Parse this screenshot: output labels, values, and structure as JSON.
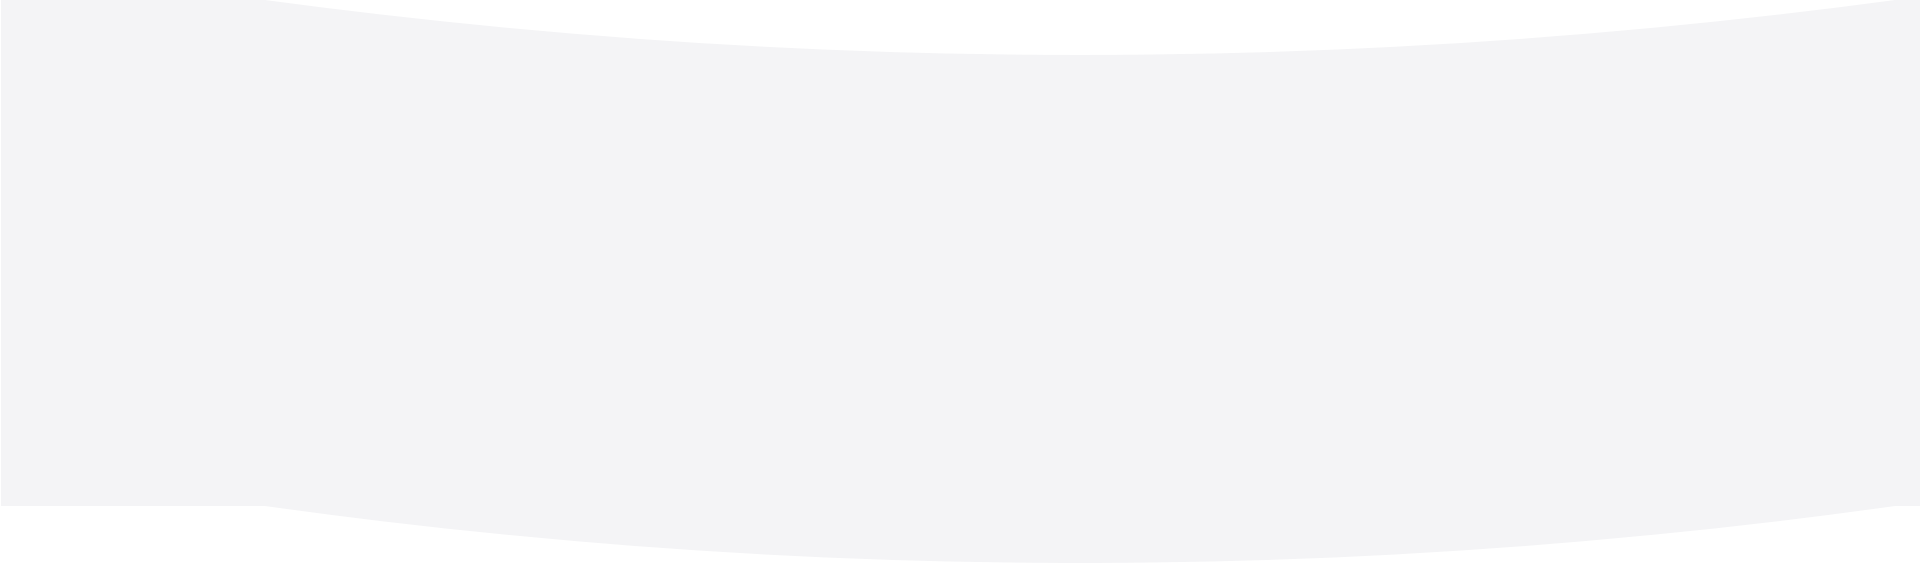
{
  "colors": {
    "page_background": "#ffffff",
    "band_fill": "#f4f4f6"
  }
}
